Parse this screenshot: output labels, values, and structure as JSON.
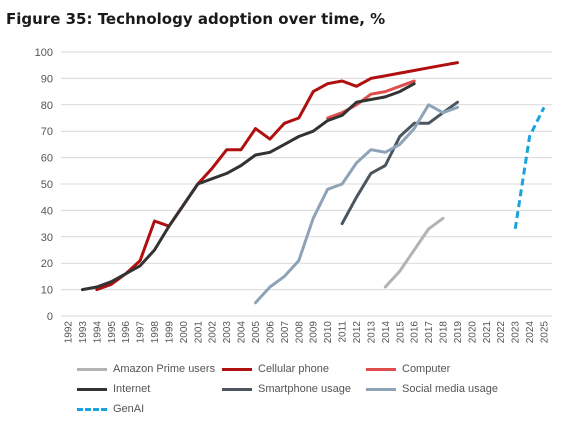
{
  "chart_data": {
    "type": "line",
    "title": "Figure 35: Technology adoption over time, %",
    "xlabel": "",
    "ylabel": "",
    "ylim": [
      0,
      100
    ],
    "yticks": [
      0,
      10,
      20,
      30,
      40,
      50,
      60,
      70,
      80,
      90,
      100
    ],
    "xticks": [
      "1992",
      "1993",
      "1994",
      "1995",
      "1996",
      "1997",
      "1998",
      "1999",
      "2000",
      "2001",
      "2002",
      "2003",
      "2004",
      "2005",
      "2006",
      "2007",
      "2008",
      "2009",
      "2010",
      "2011",
      "2012",
      "2013",
      "2014",
      "2015",
      "2016",
      "2017",
      "2018",
      "2019",
      "2020",
      "2021",
      "2022",
      "2023",
      "2024",
      "2025"
    ],
    "grid": "horizontal",
    "legend_position": "bottom",
    "series": [
      {
        "name": "Amazon Prime users",
        "color": "#b3b3b3",
        "dash": false,
        "x": [
          2014,
          2015,
          2016,
          2017,
          2018
        ],
        "y": [
          11,
          17,
          25,
          33,
          37
        ]
      },
      {
        "name": "Cellular phone",
        "color": "#b00f0f",
        "dash": false,
        "x": [
          1994,
          1995,
          1996,
          1997,
          1998,
          1999,
          2000,
          2001,
          2002,
          2003,
          2004,
          2005,
          2006,
          2007,
          2008,
          2009,
          2010,
          2011,
          2012,
          2013,
          2014,
          2015,
          2016,
          2017,
          2018,
          2019
        ],
        "y": [
          10,
          12,
          16,
          21,
          36,
          34,
          42,
          50,
          56,
          63,
          63,
          71,
          67,
          73,
          75,
          85,
          88,
          89,
          87,
          90,
          91,
          92,
          93,
          94,
          95,
          96
        ]
      },
      {
        "name": "Computer",
        "color": "#e04d4d",
        "dash": false,
        "x": [
          2010,
          2011,
          2012,
          2013,
          2014,
          2015,
          2016
        ],
        "y": [
          75,
          77,
          80,
          84,
          85,
          87,
          89
        ]
      },
      {
        "name": "Internet",
        "color": "#333333",
        "dash": false,
        "x": [
          1993,
          1994,
          1995,
          1996,
          1997,
          1998,
          1999,
          2000,
          2001,
          2002,
          2003,
          2004,
          2005,
          2006,
          2007,
          2008,
          2009,
          2010,
          2011,
          2012,
          2013,
          2014,
          2015,
          2016
        ],
        "y": [
          10,
          11,
          13,
          16,
          19,
          25,
          34,
          42,
          50,
          52,
          54,
          57,
          61,
          62,
          65,
          68,
          70,
          74,
          76,
          81,
          82,
          83,
          85,
          88
        ]
      },
      {
        "name": "Smartphone usage",
        "color": "#4a5560",
        "dash": false,
        "x": [
          2011,
          2012,
          2013,
          2014,
          2015,
          2016,
          2017,
          2018,
          2019
        ],
        "y": [
          35,
          45,
          54,
          57,
          68,
          73,
          73,
          77,
          81
        ]
      },
      {
        "name": "Social media usage",
        "color": "#8fa3b8",
        "dash": false,
        "x": [
          2005,
          2006,
          2007,
          2008,
          2009,
          2010,
          2011,
          2012,
          2013,
          2014,
          2015,
          2016,
          2017,
          2018,
          2019
        ],
        "y": [
          5,
          11,
          15,
          21,
          37,
          48,
          50,
          58,
          63,
          62,
          65,
          71,
          80,
          77,
          79
        ]
      },
      {
        "name": "GenAI",
        "color": "#1aa3dc",
        "dash": true,
        "x": [
          2023,
          2024,
          2025
        ],
        "y": [
          33,
          68,
          79
        ]
      }
    ]
  }
}
